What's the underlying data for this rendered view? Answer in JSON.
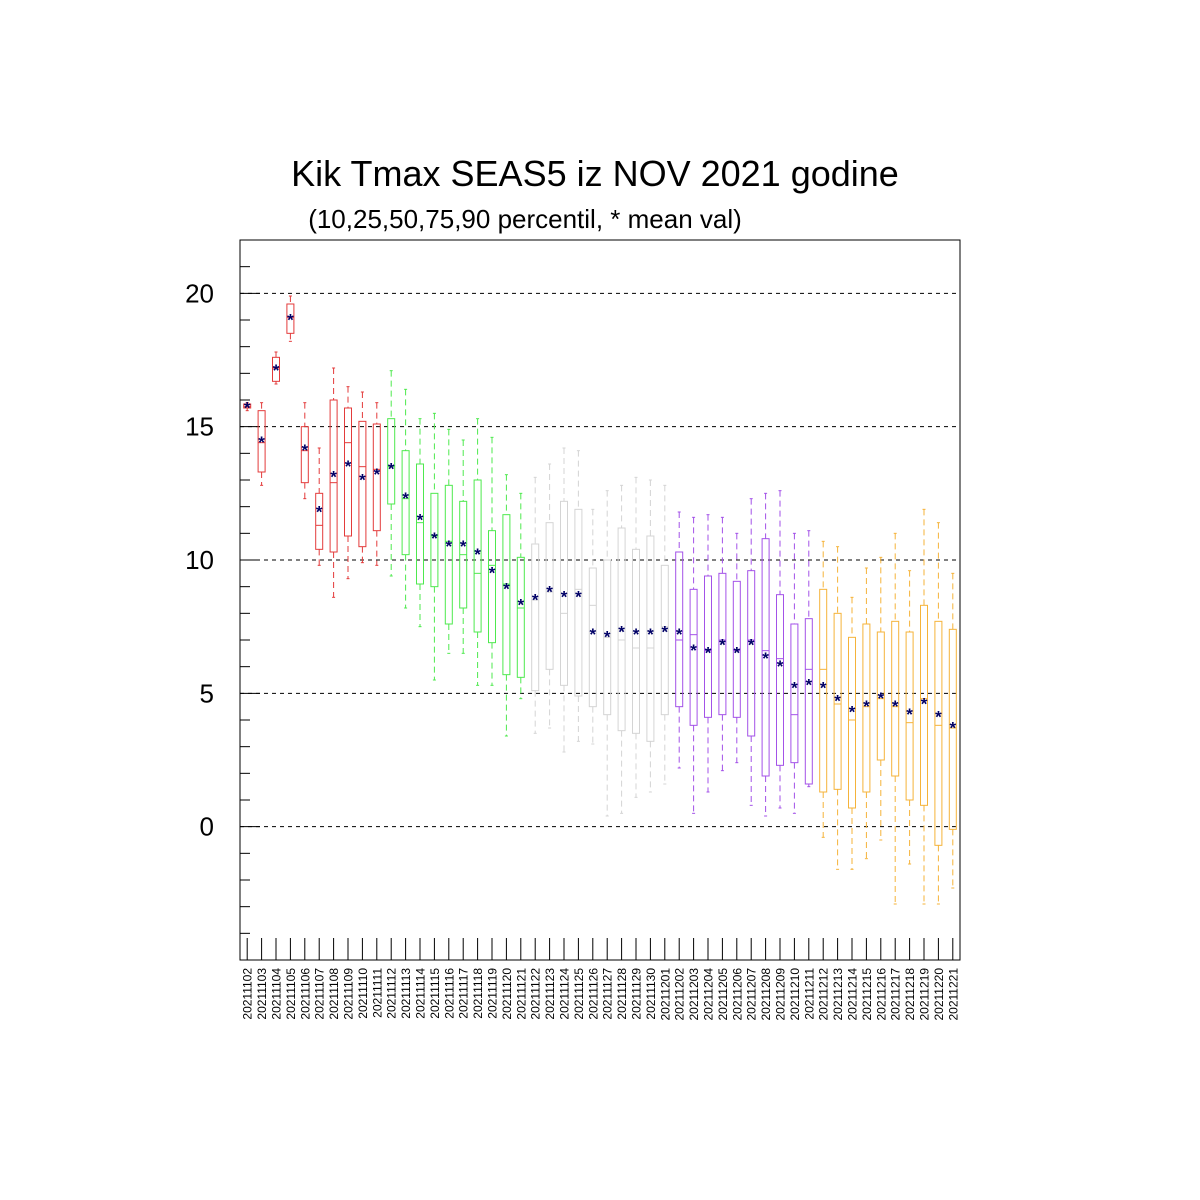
{
  "chart_data": {
    "type": "box",
    "title": "Kik Tmax SEAS5 iz NOV 2021 godine",
    "subtitle": "(10,25,50,75,90 percentil, * mean val)",
    "xlabel": "",
    "ylabel": "",
    "ylim": [
      -5,
      22
    ],
    "yticks": [
      0,
      5,
      10,
      15,
      20
    ],
    "yminor_step": 1,
    "grid": "horizontal dashed at major ticks",
    "categories": [
      "20211102",
      "20211103",
      "20211104",
      "20211105",
      "20211106",
      "20211107",
      "20211108",
      "20211109",
      "20211110",
      "20211111",
      "20211112",
      "20211113",
      "20211114",
      "20211115",
      "20211116",
      "20211117",
      "20211118",
      "20211119",
      "20211120",
      "20211121",
      "20211122",
      "20211123",
      "20211124",
      "20211125",
      "20211126",
      "20211127",
      "20211128",
      "20211129",
      "20211130",
      "20211201",
      "20211202",
      "20211203",
      "20211204",
      "20211205",
      "20211206",
      "20211207",
      "20211208",
      "20211209",
      "20211210",
      "20211211",
      "20211212",
      "20211213",
      "20211214",
      "20211215",
      "20211216",
      "20211217",
      "20211218",
      "20211219",
      "20211220",
      "20211221"
    ],
    "group_colors": [
      "#e33b3b",
      "#4ee94e",
      "#d4d4d4",
      "#a352e8",
      "#f5b33a"
    ],
    "mean_color": "#000066",
    "boxes": [
      {
        "p10": 15.6,
        "p25": 15.7,
        "p50": 15.75,
        "p75": 15.85,
        "p90": 15.9,
        "mean": 15.8,
        "group": 0
      },
      {
        "p10": 12.8,
        "p25": 13.3,
        "p50": 14.4,
        "p75": 15.6,
        "p90": 15.9,
        "mean": 14.5,
        "group": 0
      },
      {
        "p10": 16.6,
        "p25": 16.7,
        "p50": 17.2,
        "p75": 17.6,
        "p90": 17.8,
        "mean": 17.2,
        "group": 0
      },
      {
        "p10": 18.2,
        "p25": 18.5,
        "p50": 19.1,
        "p75": 19.6,
        "p90": 19.9,
        "mean": 19.1,
        "group": 0
      },
      {
        "p10": 12.3,
        "p25": 12.9,
        "p50": 14.1,
        "p75": 15.0,
        "p90": 15.9,
        "mean": 14.2,
        "group": 0
      },
      {
        "p10": 9.8,
        "p25": 10.4,
        "p50": 11.3,
        "p75": 12.5,
        "p90": 14.2,
        "mean": 11.9,
        "group": 0
      },
      {
        "p10": 8.6,
        "p25": 10.3,
        "p50": 12.9,
        "p75": 16.0,
        "p90": 17.2,
        "mean": 13.2,
        "group": 0
      },
      {
        "p10": 9.3,
        "p25": 10.9,
        "p50": 14.4,
        "p75": 15.7,
        "p90": 16.5,
        "mean": 13.6,
        "group": 0
      },
      {
        "p10": 9.9,
        "p25": 10.5,
        "p50": 13.5,
        "p75": 15.2,
        "p90": 16.3,
        "mean": 13.1,
        "group": 0
      },
      {
        "p10": 9.8,
        "p25": 11.1,
        "p50": 13.4,
        "p75": 15.1,
        "p90": 15.9,
        "mean": 13.3,
        "group": 0
      },
      {
        "p10": 9.4,
        "p25": 12.1,
        "p50": 13.5,
        "p75": 15.3,
        "p90": 17.1,
        "mean": 13.5,
        "group": 1
      },
      {
        "p10": 8.2,
        "p25": 10.2,
        "p50": 12.3,
        "p75": 14.1,
        "p90": 16.4,
        "mean": 12.4,
        "group": 1
      },
      {
        "p10": 7.5,
        "p25": 9.1,
        "p50": 11.4,
        "p75": 13.6,
        "p90": 15.3,
        "mean": 11.6,
        "group": 1
      },
      {
        "p10": 5.5,
        "p25": 9.0,
        "p50": 10.9,
        "p75": 12.5,
        "p90": 15.5,
        "mean": 10.9,
        "group": 1
      },
      {
        "p10": 6.5,
        "p25": 7.6,
        "p50": 10.7,
        "p75": 12.8,
        "p90": 14.9,
        "mean": 10.6,
        "group": 1
      },
      {
        "p10": 6.5,
        "p25": 8.2,
        "p50": 10.2,
        "p75": 12.2,
        "p90": 14.5,
        "mean": 10.6,
        "group": 1
      },
      {
        "p10": 5.3,
        "p25": 7.3,
        "p50": 9.5,
        "p75": 13.0,
        "p90": 15.3,
        "mean": 10.3,
        "group": 1
      },
      {
        "p10": 5.3,
        "p25": 6.9,
        "p50": 9.8,
        "p75": 11.1,
        "p90": 14.6,
        "mean": 9.6,
        "group": 1
      },
      {
        "p10": 3.4,
        "p25": 5.7,
        "p50": 9.1,
        "p75": 11.7,
        "p90": 13.2,
        "mean": 9.0,
        "group": 1
      },
      {
        "p10": 4.8,
        "p25": 5.6,
        "p50": 8.2,
        "p75": 10.1,
        "p90": 12.5,
        "mean": 8.4,
        "group": 1
      },
      {
        "p10": 3.5,
        "p25": 5.1,
        "p50": 8.5,
        "p75": 10.6,
        "p90": 13.1,
        "mean": 8.6,
        "group": 2
      },
      {
        "p10": 3.7,
        "p25": 5.9,
        "p50": 8.8,
        "p75": 11.4,
        "p90": 13.6,
        "mean": 8.9,
        "group": 2
      },
      {
        "p10": 2.8,
        "p25": 5.3,
        "p50": 8.0,
        "p75": 12.2,
        "p90": 14.2,
        "mean": 8.7,
        "group": 2
      },
      {
        "p10": 3.2,
        "p25": 4.9,
        "p50": 8.9,
        "p75": 11.9,
        "p90": 14.1,
        "mean": 8.7,
        "group": 2
      },
      {
        "p10": 3.1,
        "p25": 4.5,
        "p50": 8.3,
        "p75": 9.7,
        "p90": 11.9,
        "mean": 7.3,
        "group": 2
      },
      {
        "p10": 0.4,
        "p25": 4.2,
        "p50": 7.1,
        "p75": 10.0,
        "p90": 12.6,
        "mean": 7.2,
        "group": 2
      },
      {
        "p10": 0.5,
        "p25": 3.6,
        "p50": 7.0,
        "p75": 11.2,
        "p90": 12.8,
        "mean": 7.4,
        "group": 2
      },
      {
        "p10": 1.1,
        "p25": 3.5,
        "p50": 6.7,
        "p75": 10.4,
        "p90": 13.1,
        "mean": 7.3,
        "group": 2
      },
      {
        "p10": 1.3,
        "p25": 3.2,
        "p50": 6.7,
        "p75": 10.9,
        "p90": 13.0,
        "mean": 7.3,
        "group": 2
      },
      {
        "p10": 1.6,
        "p25": 4.2,
        "p50": 7.5,
        "p75": 9.8,
        "p90": 12.8,
        "mean": 7.4,
        "group": 2
      },
      {
        "p10": 2.2,
        "p25": 4.5,
        "p50": 7.0,
        "p75": 10.3,
        "p90": 11.8,
        "mean": 7.3,
        "group": 3
      },
      {
        "p10": 0.5,
        "p25": 3.8,
        "p50": 7.2,
        "p75": 8.9,
        "p90": 11.6,
        "mean": 6.7,
        "group": 3
      },
      {
        "p10": 1.3,
        "p25": 4.1,
        "p50": 6.6,
        "p75": 9.4,
        "p90": 11.7,
        "mean": 6.6,
        "group": 3
      },
      {
        "p10": 2.1,
        "p25": 4.2,
        "p50": 7.0,
        "p75": 9.5,
        "p90": 11.6,
        "mean": 6.9,
        "group": 3
      },
      {
        "p10": 2.4,
        "p25": 4.1,
        "p50": 6.6,
        "p75": 9.2,
        "p90": 11.0,
        "mean": 6.6,
        "group": 3
      },
      {
        "p10": 0.8,
        "p25": 3.4,
        "p50": 7.0,
        "p75": 9.6,
        "p90": 12.3,
        "mean": 6.9,
        "group": 3
      },
      {
        "p10": 0.4,
        "p25": 1.9,
        "p50": 6.6,
        "p75": 10.8,
        "p90": 12.5,
        "mean": 6.4,
        "group": 3
      },
      {
        "p10": 0.7,
        "p25": 2.3,
        "p50": 6.3,
        "p75": 8.7,
        "p90": 12.6,
        "mean": 6.1,
        "group": 3
      },
      {
        "p10": 0.5,
        "p25": 2.4,
        "p50": 4.2,
        "p75": 7.6,
        "p90": 11.0,
        "mean": 5.3,
        "group": 3
      },
      {
        "p10": 1.5,
        "p25": 1.6,
        "p50": 5.9,
        "p75": 7.8,
        "p90": 11.1,
        "mean": 5.4,
        "group": 3
      },
      {
        "p10": -0.4,
        "p25": 1.3,
        "p50": 5.9,
        "p75": 8.9,
        "p90": 10.7,
        "mean": 5.3,
        "group": 4
      },
      {
        "p10": -1.6,
        "p25": 1.4,
        "p50": 4.6,
        "p75": 8.0,
        "p90": 10.5,
        "mean": 4.8,
        "group": 4
      },
      {
        "p10": -1.6,
        "p25": 0.7,
        "p50": 4.0,
        "p75": 7.1,
        "p90": 8.6,
        "mean": 4.4,
        "group": 4
      },
      {
        "p10": -1.2,
        "p25": 1.3,
        "p50": 4.5,
        "p75": 7.6,
        "p90": 9.7,
        "mean": 4.6,
        "group": 4
      },
      {
        "p10": -0.5,
        "p25": 2.5,
        "p50": 4.8,
        "p75": 7.3,
        "p90": 10.1,
        "mean": 4.9,
        "group": 4
      },
      {
        "p10": -2.9,
        "p25": 1.9,
        "p50": 4.5,
        "p75": 7.7,
        "p90": 11.0,
        "mean": 4.6,
        "group": 4
      },
      {
        "p10": -1.4,
        "p25": 1.0,
        "p50": 3.9,
        "p75": 7.3,
        "p90": 9.6,
        "mean": 4.3,
        "group": 4
      },
      {
        "p10": -2.9,
        "p25": 0.8,
        "p50": 4.8,
        "p75": 8.3,
        "p90": 11.9,
        "mean": 4.7,
        "group": 4
      },
      {
        "p10": -2.9,
        "p25": -0.7,
        "p50": 3.8,
        "p75": 7.7,
        "p90": 11.4,
        "mean": 4.2,
        "group": 4
      },
      {
        "p10": -2.3,
        "p25": -0.1,
        "p50": 3.7,
        "p75": 7.4,
        "p90": 9.5,
        "mean": 3.8,
        "group": 4
      }
    ]
  }
}
